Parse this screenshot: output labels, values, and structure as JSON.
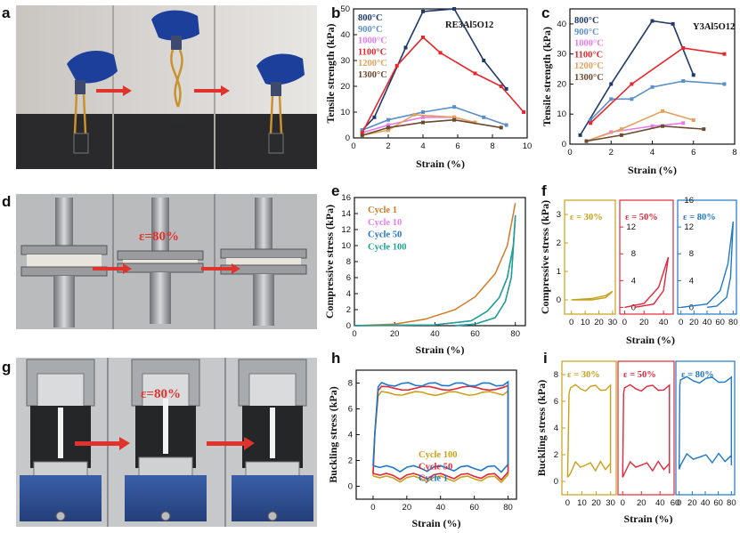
{
  "panels": {
    "a": "a",
    "b": "b",
    "c": "c",
    "d": "d",
    "e": "e",
    "f": "f",
    "g": "g",
    "h": "h",
    "i": "i"
  },
  "photos": {
    "a": {
      "description_label": "tensile test photo"
    },
    "d": {
      "overlay_text": "ε=80%"
    },
    "g": {
      "overlay_text": "ε=80%"
    }
  },
  "chart_data": [
    {
      "id": "b",
      "type": "line",
      "title": "RE3Al5O12",
      "xlabel": "Strain (%)",
      "ylabel": "Tensile strength (kPa)",
      "xlim": [
        0,
        10
      ],
      "ylim": [
        0,
        50
      ],
      "xticks": [
        "0",
        "2",
        "4",
        "6",
        "8",
        "10"
      ],
      "yticks": [
        "0",
        "10",
        "20",
        "30",
        "40",
        "50"
      ],
      "series": [
        {
          "name": "800°C",
          "color": "#1f3a6b",
          "x": [
            0.5,
            1.2,
            3.0,
            4.0,
            5.8,
            7.5,
            8.8
          ],
          "y": [
            3,
            8,
            35,
            49,
            50,
            30,
            19
          ]
        },
        {
          "name": "900°C",
          "color": "#5b8fc7",
          "x": [
            0.5,
            2.0,
            4.0,
            5.8,
            7.5,
            8.8
          ],
          "y": [
            3,
            7,
            10,
            12,
            8,
            5
          ]
        },
        {
          "name": "1000°C",
          "color": "#e57be8",
          "x": [
            0.5,
            2.0,
            4.0,
            5.8,
            7.0
          ],
          "y": [
            2,
            5,
            8,
            8,
            6
          ]
        },
        {
          "name": "1100°C",
          "color": "#e8262b",
          "x": [
            0.5,
            2.5,
            4.0,
            5.0,
            7.0,
            8.5,
            9.8
          ],
          "y": [
            2,
            28,
            39,
            33,
            25,
            20,
            10
          ]
        },
        {
          "name": "1200°C",
          "color": "#e3a15b",
          "x": [
            0.5,
            2.0,
            3.5,
            5.8,
            7.0
          ],
          "y": [
            1,
            3,
            9,
            8,
            6
          ]
        },
        {
          "name": "1300°C",
          "color": "#6b4a2f",
          "x": [
            0.5,
            2.0,
            4.0,
            5.8,
            8.5
          ],
          "y": [
            1,
            4,
            6,
            7,
            4
          ]
        }
      ]
    },
    {
      "id": "c",
      "type": "line",
      "title": "Y3Al5O12",
      "xlabel": "Strain (%)",
      "ylabel": "Tensile strength (kPa)",
      "xlim": [
        0,
        8
      ],
      "ylim": [
        0,
        45
      ],
      "xticks": [
        "0",
        "2",
        "4",
        "6",
        "8"
      ],
      "yticks": [
        "0",
        "10",
        "20",
        "30",
        "40"
      ],
      "series": [
        {
          "name": "800°C",
          "color": "#1f3a6b",
          "x": [
            0.5,
            2.0,
            4.0,
            5.0,
            6.0
          ],
          "y": [
            3,
            20,
            41,
            40,
            23
          ]
        },
        {
          "name": "900°C",
          "color": "#5b8fc7",
          "x": [
            1.0,
            2.0,
            3.0,
            4.0,
            5.5,
            7.5
          ],
          "y": [
            8,
            15,
            15,
            19,
            21,
            20
          ]
        },
        {
          "name": "1000°C",
          "color": "#e57be8",
          "x": [
            0.8,
            2.0,
            4.0,
            5.5
          ],
          "y": [
            1,
            4,
            6,
            7
          ]
        },
        {
          "name": "1100°C",
          "color": "#e8262b",
          "x": [
            1.0,
            3.0,
            5.5,
            7.5
          ],
          "y": [
            7,
            20,
            32,
            30
          ]
        },
        {
          "name": "1200°C",
          "color": "#e3a15b",
          "x": [
            0.8,
            2.5,
            4.5,
            6.0
          ],
          "y": [
            1,
            5,
            11,
            8
          ]
        },
        {
          "name": "1300°C",
          "color": "#6b4a2f",
          "x": [
            0.8,
            2.5,
            4.5,
            6.5
          ],
          "y": [
            1,
            3,
            6,
            5
          ]
        }
      ]
    },
    {
      "id": "e",
      "type": "line",
      "xlabel": "Strain (%)",
      "ylabel": "Compressive stress (kPa)",
      "xlim": [
        0,
        85
      ],
      "ylim": [
        0,
        16
      ],
      "xticks": [
        "0",
        "20",
        "40",
        "60",
        "80"
      ],
      "yticks": [
        "0",
        "2",
        "4",
        "6",
        "8",
        "10",
        "12",
        "14",
        "16"
      ],
      "series": [
        {
          "name": "Cycle 1",
          "color": "#d17a22"
        },
        {
          "name": "Cycle 10",
          "color": "#e67ef0"
        },
        {
          "name": "Cycle 50",
          "color": "#2277c7"
        },
        {
          "name": "Cycle 100",
          "color": "#1aa391"
        }
      ]
    },
    {
      "id": "f",
      "type": "line",
      "ylabel": "Compressive stress (kPa)",
      "xlabel": "Strain (%)",
      "subplots": [
        {
          "label": "ε = 30%",
          "color": "#c9a018",
          "xticks": [
            "0",
            "10",
            "20",
            "30"
          ],
          "yticks": [
            "0",
            "1",
            "2",
            "3"
          ]
        },
        {
          "label": "ε = 50%",
          "color": "#e0283a",
          "xticks": [
            "0",
            "20",
            "40"
          ],
          "yticks": [
            "0",
            "4",
            "8",
            "12"
          ]
        },
        {
          "label": "ε = 80%",
          "color": "#1f78c8",
          "xticks": [
            "0",
            "20",
            "40",
            "60",
            "80"
          ],
          "yticks": [
            "0",
            "4",
            "8",
            "12",
            "16"
          ]
        }
      ]
    },
    {
      "id": "h",
      "type": "line",
      "xlabel": "Strain (%)",
      "ylabel": "Buckling stress (kPa)",
      "xlim": [
        -10,
        85
      ],
      "ylim": [
        -1,
        9
      ],
      "xticks": [
        "0",
        "20",
        "40",
        "60",
        "80"
      ],
      "yticks": [
        "0",
        "2",
        "4",
        "6",
        "8"
      ],
      "series": [
        {
          "name": "Cycle 100",
          "color": "#c9a018"
        },
        {
          "name": "Cycle 50",
          "color": "#e0283a"
        },
        {
          "name": "Cycle 1",
          "color": "#1f78c8"
        }
      ]
    },
    {
      "id": "i",
      "type": "line",
      "xlabel": "Strain (%)",
      "ylabel": "Buckling stress (kPa)",
      "subplots": [
        {
          "label": "ε = 30%",
          "color": "#c9a018",
          "xticks": [
            "0",
            "10",
            "20",
            "30"
          ],
          "yticks": [
            "0",
            "2",
            "4",
            "6",
            "8"
          ]
        },
        {
          "label": "ε = 50%",
          "color": "#e0283a",
          "xticks": [
            "0",
            "20",
            "40"
          ]
        },
        {
          "label": "ε = 80%",
          "color": "#1f78c8",
          "xticks": [
            "0",
            "20",
            "40",
            "60",
            "80"
          ],
          "lead_tick": "60"
        }
      ]
    }
  ]
}
